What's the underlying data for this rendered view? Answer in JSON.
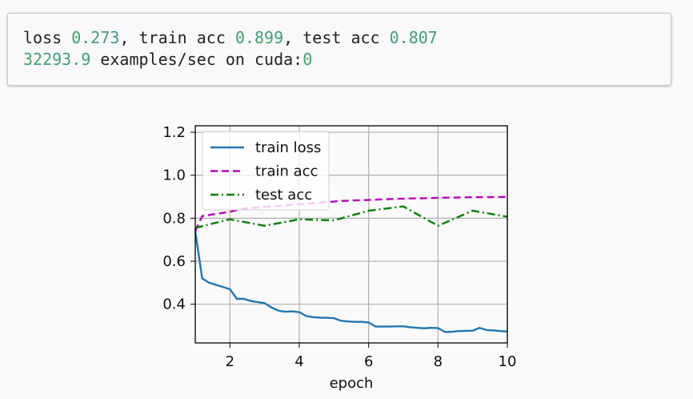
{
  "output": {
    "line1": {
      "loss_label": "loss ",
      "loss_value": "0.273",
      "sep1": ", train acc ",
      "train_acc_value": "0.899",
      "sep2": ", test acc ",
      "test_acc_value": "0.807"
    },
    "line2": {
      "rate_value": "32293.9",
      "rate_text": " examples/sec on cuda:",
      "device_value": "0"
    }
  },
  "chart_data": {
    "type": "line",
    "title": "",
    "xlabel": "epoch",
    "ylabel": "",
    "xlim": [
      1,
      10
    ],
    "ylim": [
      0.22,
      1.23
    ],
    "xticks": [
      "2",
      "4",
      "6",
      "8",
      "10"
    ],
    "yticks": [
      "0.4",
      "0.6",
      "0.8",
      "1.0",
      "1.2"
    ],
    "grid": true,
    "legend_position": "upper-left",
    "series": [
      {
        "name": "train loss",
        "color": "#1f77b4",
        "style": "solid",
        "x": [
          1.0,
          1.2,
          1.4,
          1.6,
          1.8,
          2.0,
          2.2,
          2.4,
          2.6,
          2.8,
          3.0,
          3.2,
          3.4,
          3.6,
          3.8,
          4.0,
          4.2,
          4.4,
          4.6,
          4.8,
          5.0,
          5.2,
          5.4,
          5.6,
          5.8,
          6.0,
          6.2,
          6.4,
          6.6,
          6.8,
          7.0,
          7.2,
          7.4,
          7.6,
          7.8,
          8.0,
          8.2,
          8.4,
          8.6,
          8.8,
          9.0,
          9.2,
          9.4,
          9.6,
          9.8,
          10.0
        ],
        "values": [
          0.74,
          0.52,
          0.5,
          0.49,
          0.48,
          0.47,
          0.425,
          0.425,
          0.415,
          0.41,
          0.405,
          0.385,
          0.37,
          0.365,
          0.367,
          0.363,
          0.345,
          0.34,
          0.337,
          0.337,
          0.335,
          0.323,
          0.32,
          0.318,
          0.318,
          0.315,
          0.296,
          0.296,
          0.296,
          0.297,
          0.297,
          0.293,
          0.29,
          0.288,
          0.29,
          0.289,
          0.271,
          0.272,
          0.275,
          0.276,
          0.277,
          0.29,
          0.28,
          0.278,
          0.275,
          0.273
        ]
      },
      {
        "name": "train acc",
        "color": "#bf00bf",
        "style": "dashed",
        "x": [
          1.0,
          1.2,
          1.6,
          2.0,
          2.4,
          2.8,
          3.2,
          3.6,
          4.0,
          4.4,
          4.8,
          5.2,
          5.6,
          6.0,
          6.4,
          6.8,
          7.2,
          7.6,
          8.0,
          8.4,
          8.8,
          9.2,
          9.6,
          10.0
        ],
        "values": [
          0.74,
          0.81,
          0.82,
          0.83,
          0.845,
          0.85,
          0.855,
          0.86,
          0.865,
          0.87,
          0.875,
          0.88,
          0.883,
          0.885,
          0.888,
          0.89,
          0.892,
          0.893,
          0.895,
          0.896,
          0.897,
          0.898,
          0.898,
          0.899
        ]
      },
      {
        "name": "test acc",
        "color": "#008000",
        "style": "dashdot",
        "x": [
          1,
          2,
          3,
          4,
          5,
          6,
          7,
          8,
          9,
          10
        ],
        "values": [
          0.755,
          0.795,
          0.765,
          0.795,
          0.79,
          0.835,
          0.855,
          0.765,
          0.835,
          0.807
        ]
      }
    ]
  }
}
